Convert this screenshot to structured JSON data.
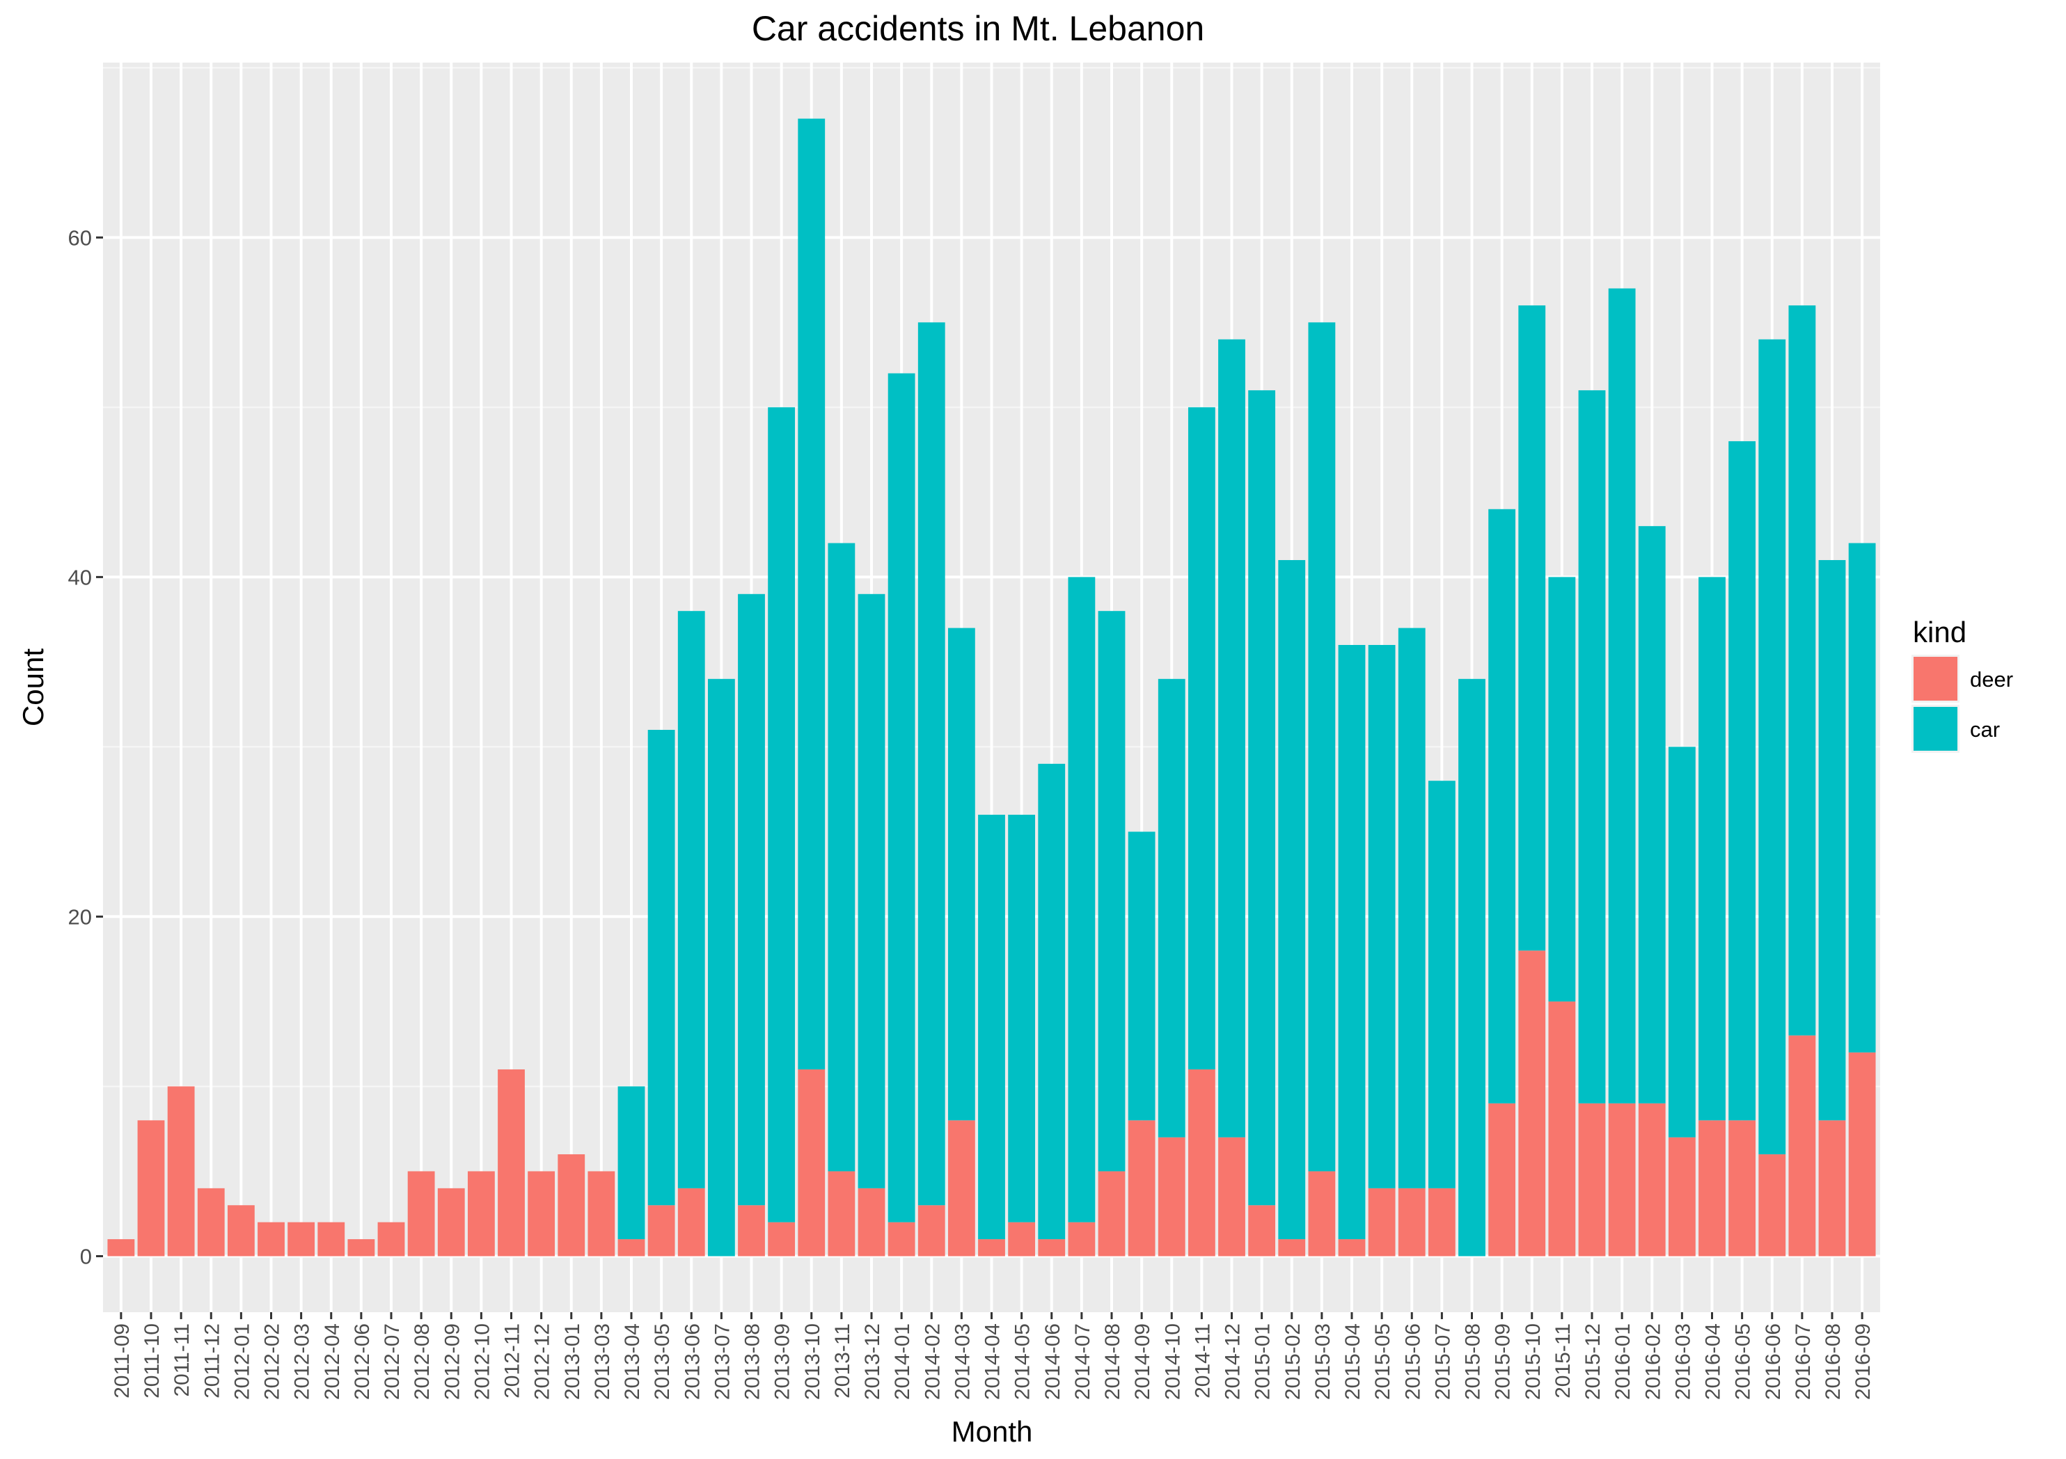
{
  "chart_data": {
    "type": "bar",
    "stacked": true,
    "title": "Car accidents in Mt. Lebanon",
    "xlabel": "Month",
    "ylabel": "Count",
    "ylim": [
      -3.3,
      70.3
    ],
    "yticks": [
      0,
      20,
      40,
      60
    ],
    "grid": true,
    "legend": {
      "title": "kind",
      "position": "right"
    },
    "categories": [
      "2011-09",
      "2011-10",
      "2011-11",
      "2011-12",
      "2012-01",
      "2012-02",
      "2012-03",
      "2012-04",
      "2012-06",
      "2012-07",
      "2012-08",
      "2012-09",
      "2012-10",
      "2012-11",
      "2012-12",
      "2013-01",
      "2013-03",
      "2013-04",
      "2013-05",
      "2013-06",
      "2013-07",
      "2013-08",
      "2013-09",
      "2013-10",
      "2013-11",
      "2013-12",
      "2014-01",
      "2014-02",
      "2014-03",
      "2014-04",
      "2014-05",
      "2014-06",
      "2014-07",
      "2014-08",
      "2014-09",
      "2014-10",
      "2014-11",
      "2014-12",
      "2015-01",
      "2015-02",
      "2015-03",
      "2015-04",
      "2015-05",
      "2015-06",
      "2015-07",
      "2015-08",
      "2015-09",
      "2015-10",
      "2015-11",
      "2015-12",
      "2016-01",
      "2016-02",
      "2016-03",
      "2016-04",
      "2016-05",
      "2016-06",
      "2016-07",
      "2016-08",
      "2016-09"
    ],
    "series": [
      {
        "name": "deer",
        "color": "#F8766D",
        "values": [
          1,
          8,
          10,
          4,
          3,
          2,
          2,
          2,
          1,
          2,
          5,
          4,
          5,
          11,
          5,
          6,
          5,
          1,
          3,
          4,
          0,
          3,
          2,
          11,
          5,
          4,
          2,
          3,
          8,
          1,
          2,
          1,
          2,
          5,
          8,
          7,
          11,
          7,
          3,
          1,
          5,
          1,
          4,
          4,
          4,
          0,
          9,
          18,
          15,
          9,
          9,
          9,
          7,
          8,
          8,
          6,
          13,
          8,
          12
        ]
      },
      {
        "name": "car",
        "color": "#00BFC4",
        "values": [
          0,
          0,
          0,
          0,
          0,
          0,
          0,
          0,
          0,
          0,
          0,
          0,
          0,
          0,
          0,
          0,
          0,
          9,
          28,
          34,
          34,
          36,
          48,
          56,
          37,
          35,
          50,
          52,
          29,
          25,
          24,
          28,
          38,
          33,
          17,
          27,
          39,
          47,
          48,
          40,
          50,
          35,
          32,
          33,
          24,
          34,
          35,
          38,
          25,
          42,
          48,
          34,
          23,
          32,
          40,
          48,
          43,
          33,
          30
        ]
      }
    ]
  }
}
